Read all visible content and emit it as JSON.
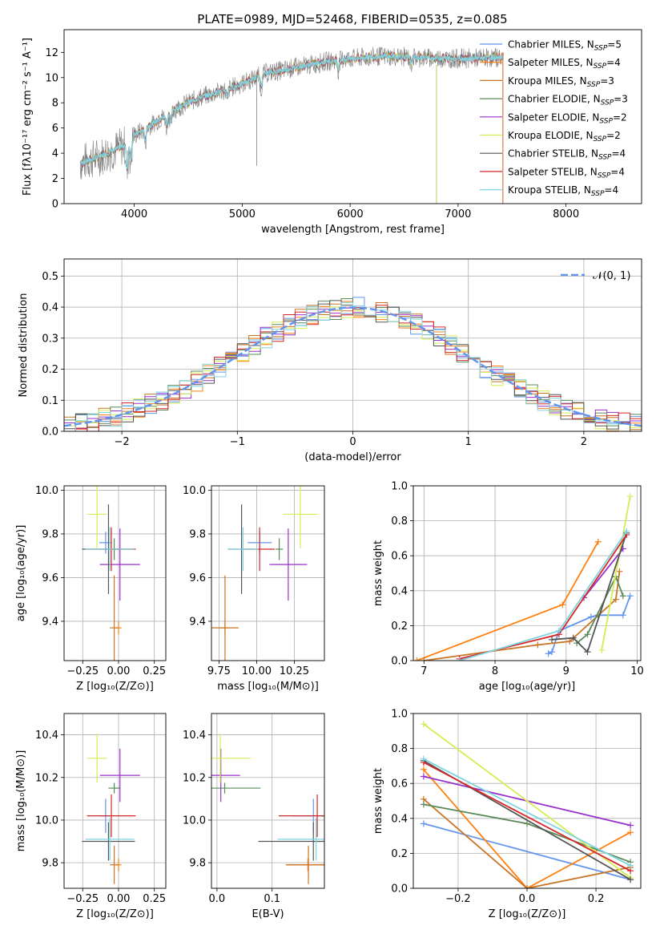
{
  "figure_title": "PLATE=0989, MJD=52468, FIBERID=0535, z=0.085",
  "models": [
    {
      "name": "Chabrier MILES, N",
      "sub": "SSP",
      "tail": "=5",
      "color": "#6495ed"
    },
    {
      "name": "Salpeter MILES, N",
      "sub": "SSP",
      "tail": "=4",
      "color": "#ff7f0e"
    },
    {
      "name": "Kroupa MILES, N",
      "sub": "SSP",
      "tail": "=3",
      "color": "#c87525"
    },
    {
      "name": "Chabrier ELODIE, N",
      "sub": "SSP",
      "tail": "=3",
      "color": "#5a8a5a"
    },
    {
      "name": "Salpeter ELODIE, N",
      "sub": "SSP",
      "tail": "=2",
      "color": "#9932cc"
    },
    {
      "name": "Kroupa ELODIE, N",
      "sub": "SSP",
      "tail": "=2",
      "color": "#d4ed55"
    },
    {
      "name": "Chabrier STELIB, N",
      "sub": "SSP",
      "tail": "=4",
      "color": "#555555"
    },
    {
      "name": "Salpeter STELIB, N",
      "sub": "SSP",
      "tail": "=4",
      "color": "#d62728"
    },
    {
      "name": "Kroupa STELIB, N",
      "sub": "SSP",
      "tail": "=4",
      "color": "#7fd4e0"
    }
  ],
  "chart_data": [
    {
      "id": "spectrum",
      "type": "line",
      "xlabel": "wavelength [Angstrom, rest frame]",
      "ylabel": "Flux [fλ10⁻¹⁷ erg cm⁻² s⁻¹ A⁻¹]",
      "xlim": [
        3350,
        8700
      ],
      "ylim": [
        0,
        13.8
      ],
      "xticks": [
        4000,
        5000,
        6000,
        7000,
        8000
      ],
      "yticks": [
        0,
        2,
        4,
        6,
        8,
        10,
        12
      ],
      "grid": false,
      "legend": "right",
      "data_color": "#808080",
      "model_color": "#7fd4e0",
      "continuum": {
        "x": [
          3500,
          3700,
          3900,
          4000,
          4200,
          4400,
          4600,
          4800,
          5000,
          5200,
          5500,
          5800,
          6000,
          6300,
          6600,
          7000,
          7400
        ],
        "y": [
          3.2,
          3.8,
          4.6,
          5.4,
          6.5,
          7.6,
          8.4,
          8.9,
          9.5,
          10.3,
          10.8,
          11.3,
          11.5,
          11.7,
          11.6,
          11.5,
          11.6
        ]
      }
    },
    {
      "id": "residual-histogram",
      "type": "line",
      "xlabel": "(data-model)/error",
      "ylabel": "Normed distribution",
      "xlim": [
        -2.5,
        2.5
      ],
      "ylim": [
        0,
        0.555
      ],
      "xticks": [
        -2,
        -1,
        0,
        1,
        2
      ],
      "yticks": [
        0.0,
        0.1,
        0.2,
        0.3,
        0.4,
        0.5
      ],
      "grid": true,
      "legend": "top-right",
      "reference_label": "𝒩(0, 1)",
      "reference_color": "#6495ed"
    },
    {
      "id": "age-vs-Z",
      "type": "scatter",
      "xlabel": "Z [log₁₀(Z/Z⊙)]",
      "ylabel": "age  [log₁₀(age/yr)]",
      "xlim": [
        -0.38,
        0.33
      ],
      "ylim": [
        9.22,
        10.02
      ],
      "xticks": [
        -0.25,
        0.0,
        0.25
      ],
      "xticklabels": [
        "−0.25",
        "0.00",
        "0.25"
      ],
      "yticks": [
        9.4,
        9.6,
        9.8,
        10.0
      ],
      "yticklabels": [
        "9.4",
        "9.6",
        "9.8",
        "10.0"
      ],
      "grid": true
    },
    {
      "id": "age-vs-mass",
      "type": "scatter",
      "xlabel": "mass [log₁₀(M/M⊙)]",
      "xlim": [
        9.7,
        10.45
      ],
      "ylim": [
        9.22,
        10.02
      ],
      "xticks": [
        9.75,
        10.0,
        10.25
      ],
      "xticklabels": [
        "9.75",
        "10.00",
        "10.25"
      ],
      "yticks": [
        9.4,
        9.6,
        9.8,
        10.0
      ],
      "yticklabels": [
        "9.4",
        "9.6",
        "9.8",
        "10.0"
      ],
      "grid": true
    },
    {
      "id": "weight-vs-age",
      "type": "line",
      "xlabel": "age  [log₁₀(age/yr)]",
      "ylabel": "mass weight",
      "xlim": [
        6.85,
        10.05
      ],
      "ylim": [
        0,
        1.0
      ],
      "xticks": [
        7,
        8,
        9,
        10
      ],
      "xticklabels": [
        "7",
        "8",
        "9",
        "10"
      ],
      "yticks": [
        0.0,
        0.2,
        0.4,
        0.6,
        0.8,
        1.0
      ],
      "yticklabels": [
        "0.0",
        "0.2",
        "0.4",
        "0.6",
        "0.8",
        "1.0"
      ],
      "grid": true
    },
    {
      "id": "mass-vs-Z",
      "type": "scatter",
      "xlabel": "Z [log₁₀(Z/Z⊙)]",
      "ylabel": "mass [log₁₀(M/M⊙)]",
      "xlim": [
        -0.38,
        0.33
      ],
      "ylim": [
        9.68,
        10.5
      ],
      "xticks": [
        -0.25,
        0.0,
        0.25
      ],
      "xticklabels": [
        "−0.25",
        "0.00",
        "0.25"
      ],
      "yticks": [
        9.8,
        10.0,
        10.2,
        10.4
      ],
      "yticklabels": [
        "9.8",
        "10.0",
        "10.2",
        "10.4"
      ],
      "grid": true
    },
    {
      "id": "mass-vs-ebv",
      "type": "scatter",
      "xlabel": "E(B-V)",
      "xlim": [
        -0.01,
        0.195
      ],
      "ylim": [
        9.68,
        10.5
      ],
      "xticks": [
        0.0,
        0.1
      ],
      "xticklabels": [
        "0.0",
        "0.1"
      ],
      "yticks": [
        9.8,
        10.0,
        10.2,
        10.4
      ],
      "yticklabels": [
        "9.8",
        "10.0",
        "10.2",
        "10.4"
      ],
      "grid": true
    },
    {
      "id": "weight-vs-Z",
      "type": "line",
      "xlabel": "Z [log₁₀(Z/Z⊙)]",
      "ylabel": "mass weight",
      "xlim": [
        -0.33,
        0.33
      ],
      "ylim": [
        0,
        1.0
      ],
      "xticks": [
        -0.2,
        0.0,
        0.2
      ],
      "xticklabels": [
        "−0.2",
        "0.0",
        "0.2"
      ],
      "yticks": [
        0.0,
        0.2,
        0.4,
        0.6,
        0.8,
        1.0
      ],
      "yticklabels": [
        "0.0",
        "0.2",
        "0.4",
        "0.6",
        "0.8",
        "1.0"
      ],
      "grid": true
    }
  ],
  "fits": [
    {
      "model": 0,
      "Z": [
        -0.09,
        0.09
      ],
      "age": [
        9.76,
        0.1
      ],
      "mass": [
        10.02,
        0.16
      ],
      "ebv": [
        0.175,
        0.08
      ]
    },
    {
      "model": 1,
      "Z": [
        0.0,
        0.04
      ],
      "age": [
        9.37,
        0.06
      ],
      "mass": [
        9.79,
        0.06
      ],
      "ebv": [
        0.165,
        0.08
      ]
    },
    {
      "model": 2,
      "Z": [
        -0.03,
        0.06
      ],
      "age": [
        9.37,
        0.48
      ],
      "mass": [
        9.79,
        0.18
      ],
      "ebv": [
        0.166,
        0.08
      ]
    },
    {
      "model": 3,
      "Z": [
        -0.03,
        0.08
      ],
      "age": [
        9.73,
        0.1
      ],
      "mass": [
        10.15,
        0.05
      ],
      "ebv": [
        0.014,
        0.13
      ]
    },
    {
      "model": 4,
      "Z": [
        0.01,
        0.28
      ],
      "age": [
        9.66,
        0.33
      ],
      "mass": [
        10.21,
        0.25
      ],
      "ebv": [
        0.007,
        0.07
      ]
    },
    {
      "model": 5,
      "Z": [
        -0.15,
        0.14
      ],
      "age": [
        9.89,
        0.31
      ],
      "mass": [
        10.29,
        0.23
      ],
      "ebv": [
        0.006,
        0.11
      ]
    },
    {
      "model": 6,
      "Z": [
        -0.07,
        0.37
      ],
      "age": [
        9.73,
        0.41
      ],
      "mass": [
        9.9,
        0.18
      ],
      "ebv": [
        0.175,
        0.2
      ]
    },
    {
      "model": 7,
      "Z": [
        -0.05,
        0.34
      ],
      "age": [
        9.73,
        0.2
      ],
      "mass": [
        10.02,
        0.2
      ],
      "ebv": [
        0.182,
        0.14
      ]
    },
    {
      "model": 8,
      "Z": [
        -0.06,
        0.34
      ],
      "age": [
        9.73,
        0.2
      ],
      "mass": [
        9.91,
        0.2
      ],
      "ebv": [
        0.18,
        0.14
      ]
    }
  ],
  "weights_by_age": [
    {
      "model": 0,
      "age": [
        8.75,
        8.8,
        8.9,
        9.35,
        9.45,
        9.8,
        9.9
      ],
      "w": [
        0.04,
        0.05,
        0.17,
        0.25,
        0.26,
        0.26,
        0.37
      ]
    },
    {
      "model": 1,
      "age": [
        6.9,
        8.95,
        9.45
      ],
      "w": [
        0.0,
        0.32,
        0.68
      ]
    },
    {
      "model": 2,
      "age": [
        7.0,
        8.6,
        9.05,
        9.7,
        9.75
      ],
      "w": [
        0.0,
        0.09,
        0.11,
        0.35,
        0.51
      ]
    },
    {
      "model": 3,
      "age": [
        9.15,
        9.3,
        9.7,
        9.8
      ],
      "w": [
        0.1,
        0.15,
        0.48,
        0.37
      ]
    },
    {
      "model": 4,
      "age": [
        9.25,
        9.8
      ],
      "w": [
        0.36,
        0.64
      ]
    },
    {
      "model": 5,
      "age": [
        9.5,
        9.9
      ],
      "w": [
        0.06,
        0.94
      ]
    },
    {
      "model": 6,
      "age": [
        8.8,
        9.1,
        9.3,
        9.85
      ],
      "w": [
        0.12,
        0.13,
        0.05,
        0.73
      ]
    },
    {
      "model": 7,
      "age": [
        7.5,
        8.9,
        9.85
      ],
      "w": [
        0.01,
        0.15,
        0.72
      ]
    },
    {
      "model": 8,
      "age": [
        7.5,
        8.9,
        9.85
      ],
      "w": [
        0.0,
        0.17,
        0.74
      ]
    }
  ],
  "weights_by_Z": [
    {
      "model": 0,
      "Z": [
        -0.3,
        0.3
      ],
      "w": [
        0.37,
        0.05
      ]
    },
    {
      "model": 1,
      "Z": [
        -0.3,
        0.0,
        0.3
      ],
      "w": [
        0.68,
        0.0,
        0.32
      ]
    },
    {
      "model": 2,
      "Z": [
        -0.3,
        0.0,
        0.3
      ],
      "w": [
        0.51,
        0.0,
        0.12
      ]
    },
    {
      "model": 3,
      "Z": [
        -0.3,
        0.0,
        0.3
      ],
      "w": [
        0.48,
        0.37,
        0.15
      ]
    },
    {
      "model": 4,
      "Z": [
        -0.3,
        0.3
      ],
      "w": [
        0.64,
        0.36
      ]
    },
    {
      "model": 5,
      "Z": [
        -0.3,
        0.3
      ],
      "w": [
        0.94,
        0.06
      ]
    },
    {
      "model": 6,
      "Z": [
        -0.3,
        0.3
      ],
      "w": [
        0.73,
        0.05
      ]
    },
    {
      "model": 7,
      "Z": [
        -0.3,
        0.3
      ],
      "w": [
        0.72,
        0.1
      ]
    },
    {
      "model": 8,
      "Z": [
        -0.3,
        0.3
      ],
      "w": [
        0.74,
        0.13
      ]
    }
  ]
}
